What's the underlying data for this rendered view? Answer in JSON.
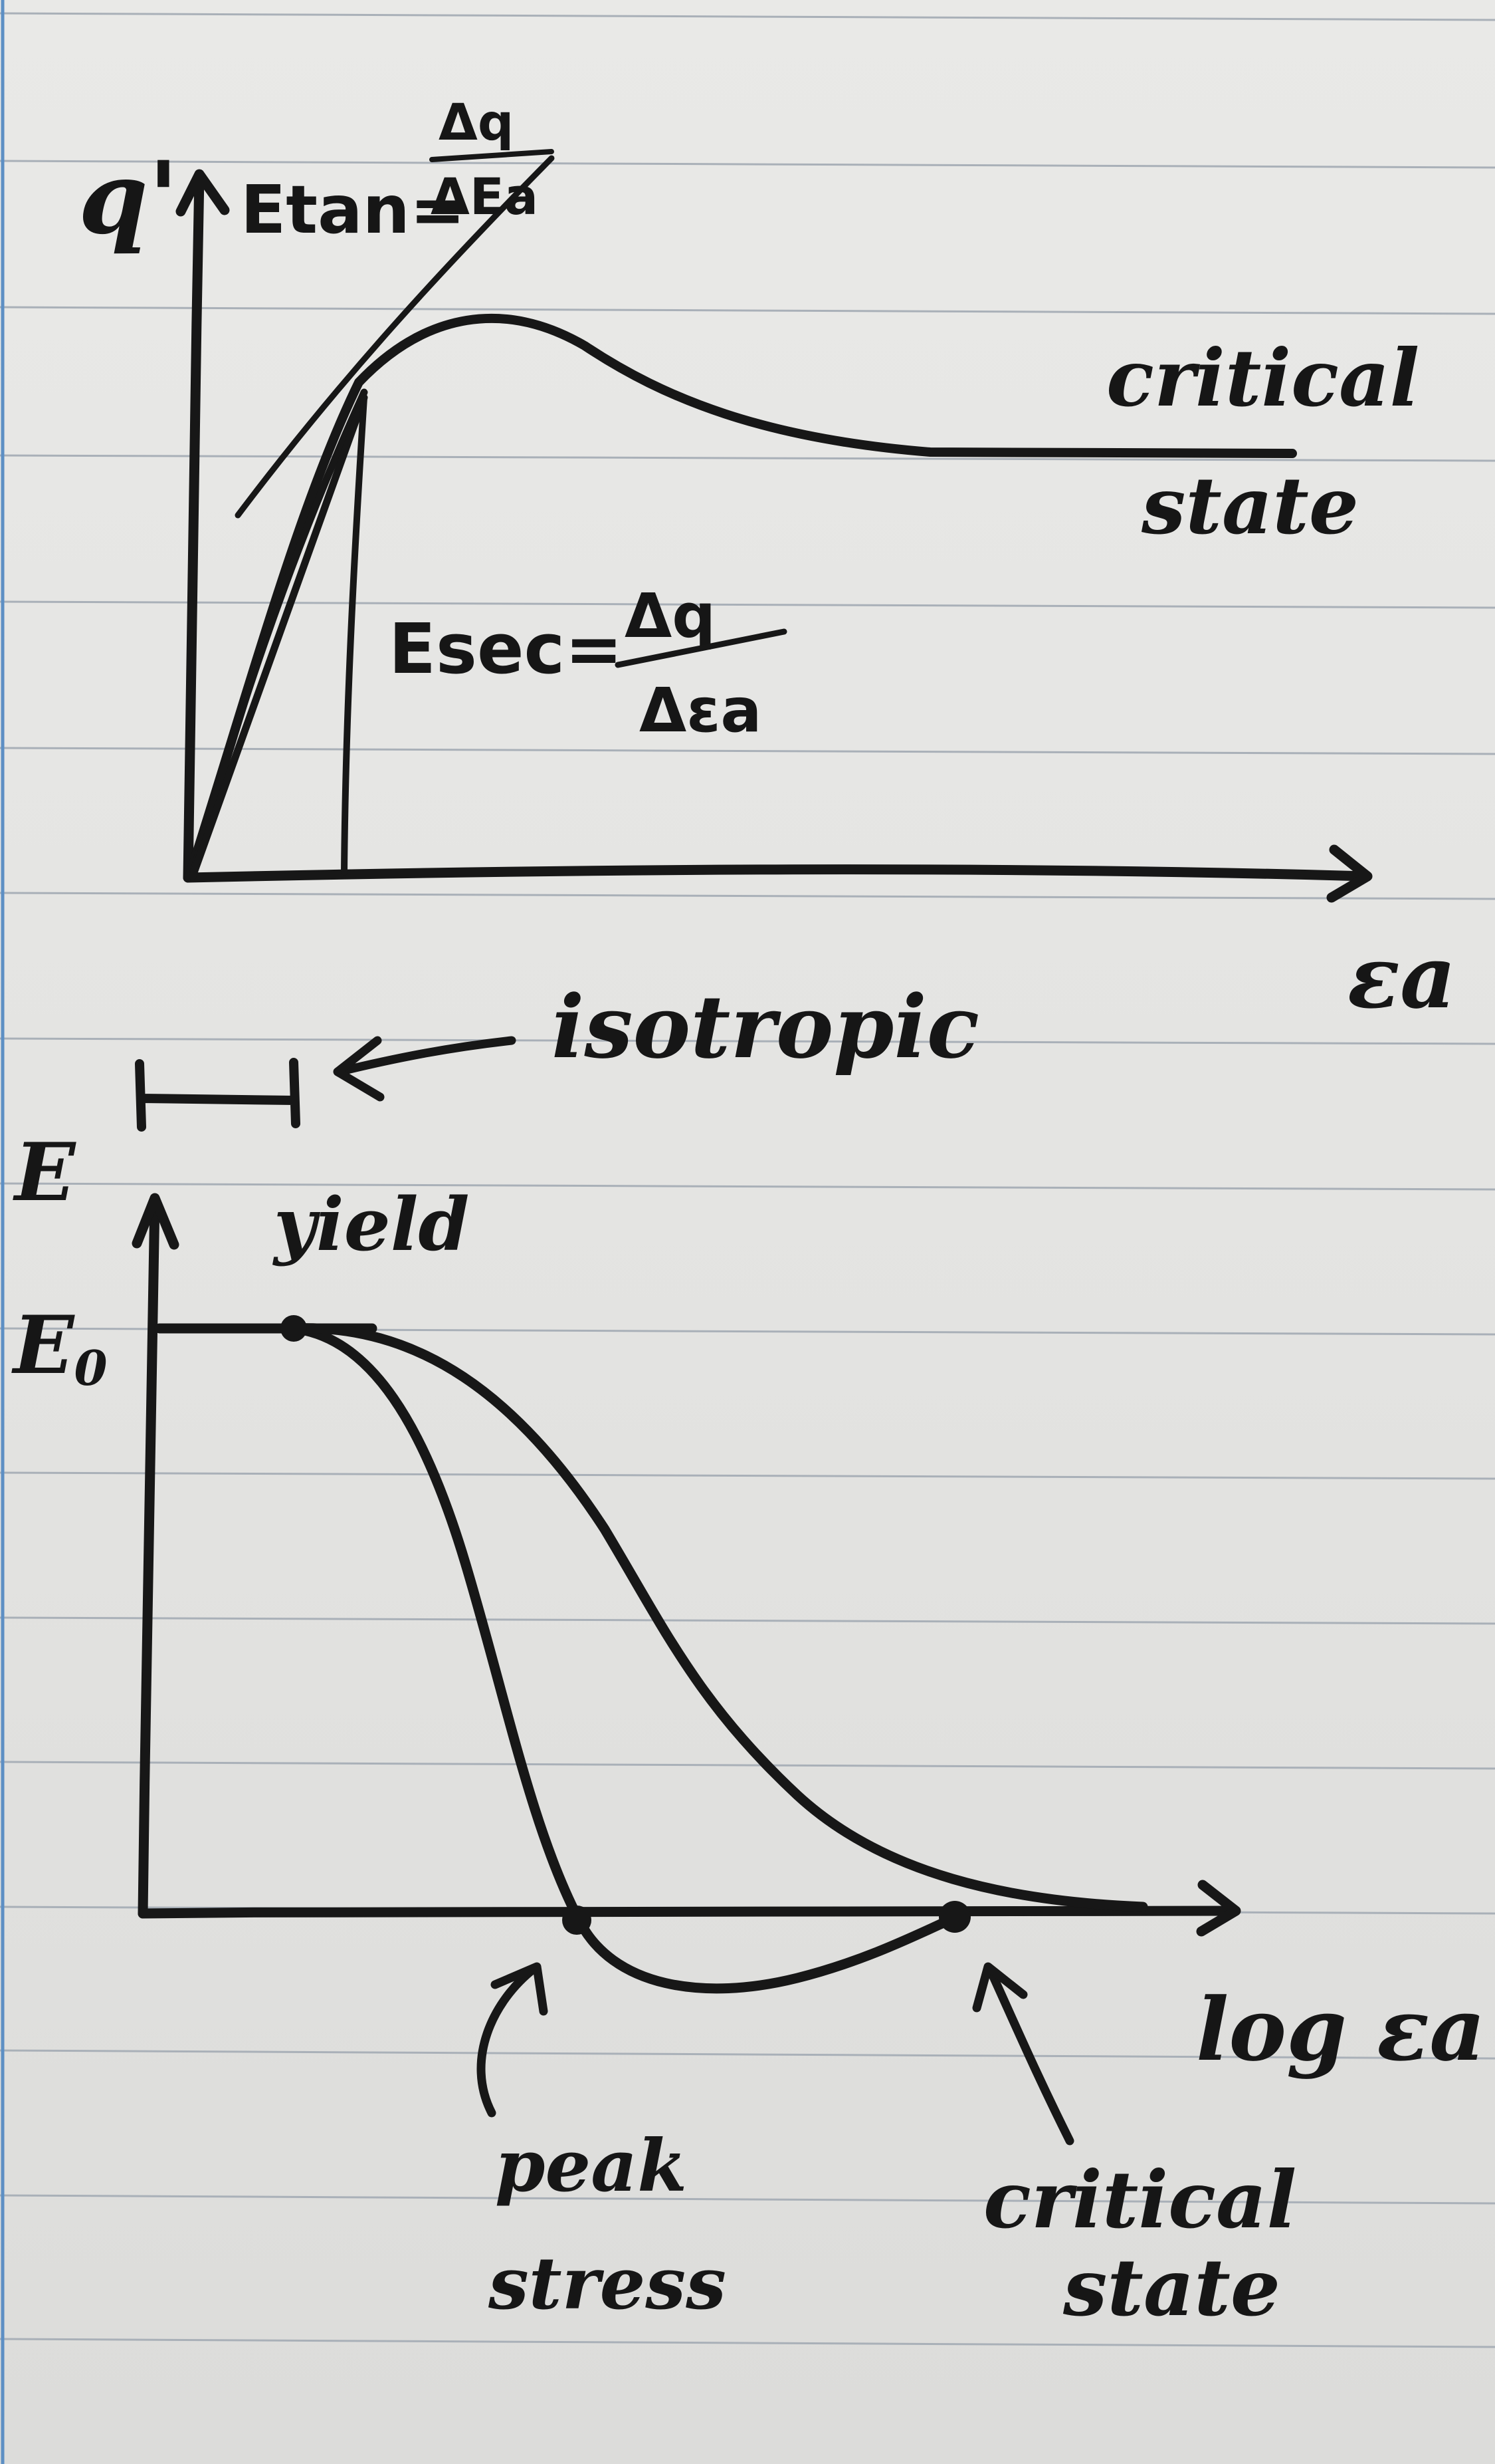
{
  "top_plot": {
    "y_axis_label": "q'",
    "x_axis_label": "εa",
    "tangent_label": "Etan= Δq/ΔEa",
    "tangent_label_lhs": "Etan=",
    "tangent_label_num": "Δq",
    "tangent_label_den": "ΔEa",
    "secant_label_lhs": "Esec=",
    "secant_label_num": "Δq",
    "secant_label_den": "Δεa",
    "curve_label_line1": "critical",
    "curve_label_line2": "state"
  },
  "bottom_plot": {
    "y_axis_label": "E",
    "y_tick_label": "E0",
    "x_axis_label": "log εa",
    "range_label": "isotropic",
    "yield_label": "yield",
    "peak_label_line1": "peak",
    "peak_label_line2": "stress",
    "critical_label_line1": "critical",
    "critical_label_line2": "state"
  },
  "colors": {
    "ink": "#171717",
    "paper": "#e6e6e4",
    "ruled_lines": "#a9b0b8",
    "margin_line": "#5d8fc4"
  }
}
